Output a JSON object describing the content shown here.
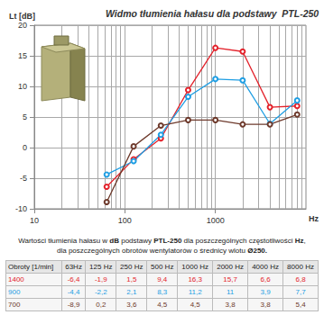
{
  "chart_data": {
    "type": "line",
    "title": "Widmo tłumienia hałasu dla podstawy  PTL-250",
    "ylabel": "Lt [dB]",
    "xlabel": "Hz",
    "log": "x",
    "x": [
      63,
      125,
      250,
      500,
      1000,
      2000,
      4000,
      8000
    ],
    "xlim": [
      10,
      10000
    ],
    "xticks": [
      10,
      100,
      1000
    ],
    "ylim": [
      -10,
      20
    ],
    "yticks": [
      -10,
      -5,
      0,
      5,
      10,
      15,
      20
    ],
    "grid": true,
    "marker": "circle",
    "series": [
      {
        "name": "1400",
        "color": "#e3222b",
        "values": [
          -6.4,
          -1.9,
          1.5,
          9.4,
          16.3,
          15.7,
          6.6,
          6.8
        ]
      },
      {
        "name": "900",
        "color": "#1f9ee3",
        "values": [
          -4.4,
          -2.2,
          2.1,
          8.3,
          11.2,
          11,
          3.9,
          7.7
        ]
      },
      {
        "name": "700",
        "color": "#6e3a2c",
        "values": [
          -8.9,
          0.2,
          3.6,
          4.5,
          4.5,
          3.8,
          3.8,
          5.4
        ]
      }
    ]
  },
  "caption": [
    [
      {
        "t": "Wartości tłumienia hałasu w "
      },
      {
        "t": "dB",
        "b": true
      },
      {
        "t": " podstawy "
      },
      {
        "t": "PTL-250",
        "b": true
      },
      {
        "t": " dla poszczególnych częstotliwości  "
      },
      {
        "t": "Hz",
        "b": true
      },
      {
        "t": ","
      }
    ],
    [
      {
        "t": "dla poszczególnych obrotów wentylatorów o średnicy wlotu "
      },
      {
        "t": "Ø250.",
        "b": true
      }
    ]
  ],
  "table": {
    "header": [
      "Obroty [1/min]",
      "63Hz",
      "125 Hz",
      "250 Hz",
      "500 Hz",
      "1000 Hz",
      "2000 Hz",
      "4000 Hz",
      "8000 Hz"
    ],
    "rows": [
      {
        "label": "1400",
        "color": "#e3222b",
        "cells": [
          "-6,4",
          "-1,9",
          "1,5",
          "9,4",
          "16,3",
          "15,7",
          "6,6",
          "6,8"
        ]
      },
      {
        "label": "900",
        "color": "#1f9ee3",
        "cells": [
          "-4,4",
          "-2,2",
          "2,1",
          "8,3",
          "11,2",
          "11",
          "3,9",
          "7,7"
        ]
      },
      {
        "label": "700",
        "color": "#6e3a2c",
        "cells": [
          "-8,9",
          "0,2",
          "3,6",
          "4,5",
          "4,5",
          "3,8",
          "3,8",
          "5,4"
        ]
      }
    ]
  }
}
